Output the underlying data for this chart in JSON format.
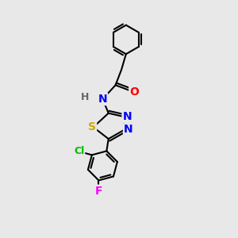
{
  "background_color": "#e8e8e8",
  "bond_color": "#000000",
  "bond_width": 1.5,
  "atom_colors": {
    "N": "#0000ff",
    "O": "#ff0000",
    "S": "#ccaa00",
    "Cl": "#00bb00",
    "F": "#ff00ff",
    "H": "#666666",
    "C": "#000000"
  },
  "font_size": 9,
  "fig_bg": "#e8e8e8"
}
